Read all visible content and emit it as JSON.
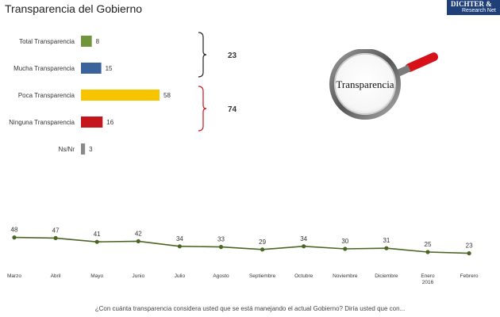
{
  "title": "Transparencia del Gobierno",
  "logo": {
    "line1": "DICHTER &",
    "line2": "Research Net"
  },
  "magnifier_label": "Transparencia",
  "question": "¿Con cuánta transparencia considera usted que se está manejando el actual Gobierno? Diría usted que con...",
  "colors": {
    "green": "#70953a",
    "blue": "#3a639c",
    "yellow": "#f8c400",
    "red": "#c4161c",
    "gray": "#8a8a8a",
    "line": "#4a6624"
  },
  "chart_data": [
    {
      "type": "bar",
      "orientation": "horizontal",
      "categories": [
        "Total Transparencia",
        "Mucha Transparencia",
        "Poca Transparencia",
        "Ninguna Transparencia",
        "Ns/Nr"
      ],
      "values": [
        8,
        15,
        58,
        16,
        3
      ],
      "colors": [
        "#70953a",
        "#3a639c",
        "#f8c400",
        "#c4161c",
        "#8a8a8a"
      ],
      "xlim": [
        0,
        60
      ],
      "groups": [
        {
          "members": [
            0,
            1
          ],
          "total": "23",
          "bracket_color": "#222222"
        },
        {
          "members": [
            2,
            3
          ],
          "total": "74",
          "bracket_color": "#c4161c"
        }
      ]
    },
    {
      "type": "line",
      "categories": [
        "Marzo",
        "Abril",
        "Mayo",
        "Junio",
        "Julio",
        "Agosto",
        "Septiembre",
        "Octubre",
        "Noviembre",
        "Diciembre",
        "Enero 2016",
        "Febrero"
      ],
      "values": [
        48,
        47,
        41,
        42,
        34,
        33,
        29,
        34,
        30,
        31,
        25,
        23
      ],
      "color": "#4a6624",
      "grid": false
    }
  ]
}
